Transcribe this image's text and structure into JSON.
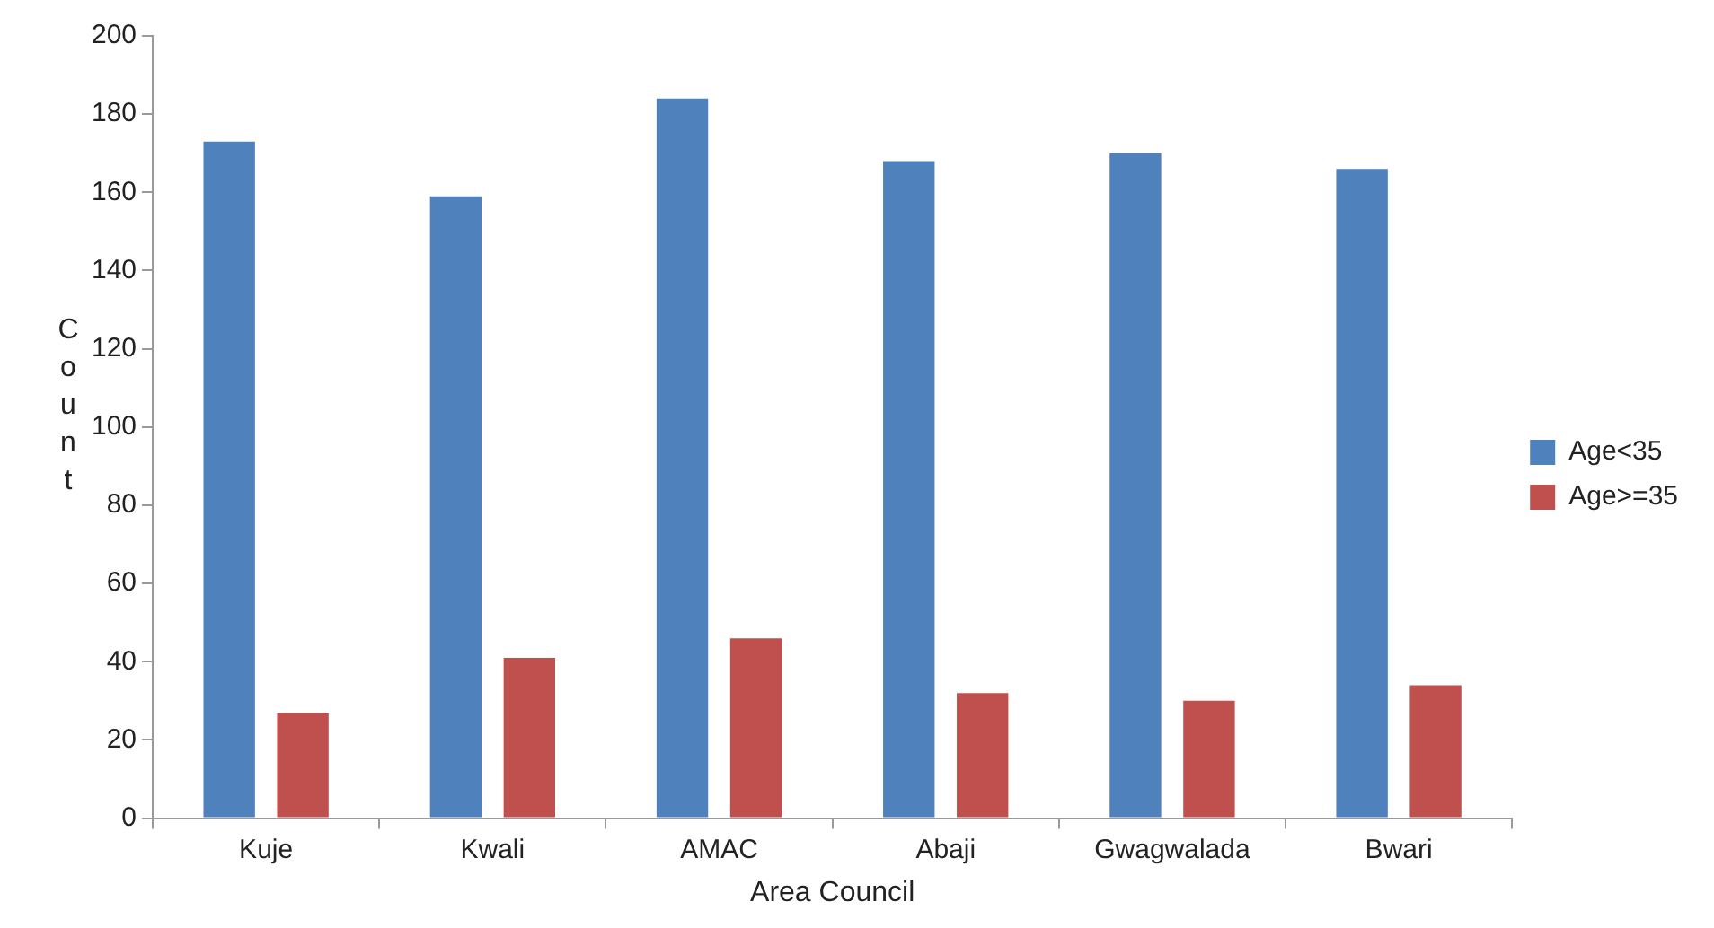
{
  "chart_data": {
    "type": "bar",
    "xlabel": "Area Council",
    "ylabel": "Count",
    "categories": [
      "Kuje",
      "Kwali",
      "AMAC",
      "Abaji",
      "Gwagwalada",
      "Bwari"
    ],
    "series": [
      {
        "name": "Age<35",
        "color": "#4f81bd",
        "values": [
          173,
          159,
          184,
          168,
          170,
          166
        ]
      },
      {
        "name": "Age>=35",
        "color": "#c0504d",
        "values": [
          27,
          41,
          46,
          32,
          30,
          34
        ]
      }
    ],
    "ylim": [
      0,
      200
    ],
    "yticks": [
      0,
      20,
      40,
      60,
      80,
      100,
      120,
      140,
      160,
      180,
      200
    ],
    "grid": false,
    "legend": "right"
  }
}
